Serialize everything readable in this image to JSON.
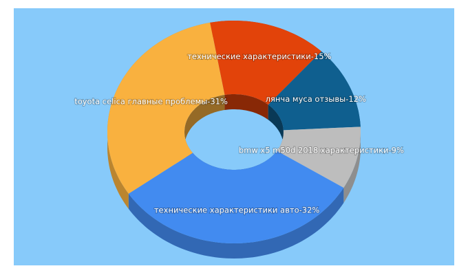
{
  "chart_data": {
    "type": "donut3d",
    "values": [
      15,
      12,
      9,
      32,
      31
    ],
    "value_labels": [
      "технические характеристики-15%",
      "лянча муса отзывы-12%",
      "bmw x5 m50d 2018 характеристики-9%",
      "технические характеристики авто-32%",
      "toyota celica главные проблемы-31%"
    ],
    "colors": [
      "#e2430a",
      "#0f5f8f",
      "#bdbdbd",
      "#428bf0",
      "#f9b13f"
    ],
    "background": "#87cafa"
  }
}
